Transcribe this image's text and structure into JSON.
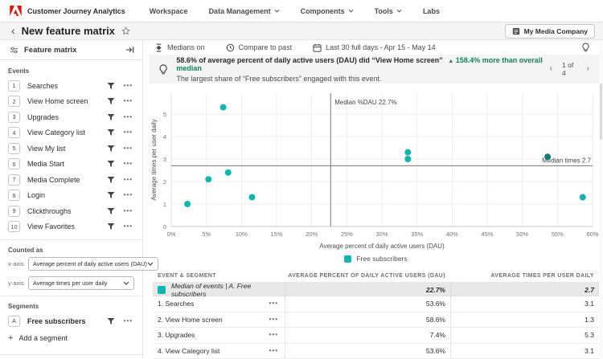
{
  "colors": {
    "brand_red": "#EB1000",
    "accent_teal": "#0FB5AE",
    "point_overlap": "#0B7E7A",
    "positive_green": "#12805C"
  },
  "app": {
    "name": "Customer Journey Analytics",
    "nav": [
      {
        "label": "Workspace",
        "chevron": false
      },
      {
        "label": "Data Management",
        "chevron": true
      },
      {
        "label": "Components",
        "chevron": true
      },
      {
        "label": "Tools",
        "chevron": true
      },
      {
        "label": "Labs",
        "chevron": false
      }
    ]
  },
  "title_bar": {
    "title": "New feature matrix",
    "org_button": "My Media Company"
  },
  "panel": {
    "header": "Feature matrix",
    "events_label": "Events",
    "events": [
      {
        "num": "1",
        "label": "Searches"
      },
      {
        "num": "2",
        "label": "View Home screen"
      },
      {
        "num": "3",
        "label": "Upgrades"
      },
      {
        "num": "4",
        "label": "View Category list"
      },
      {
        "num": "5",
        "label": "View My list"
      },
      {
        "num": "6",
        "label": "Media Start"
      },
      {
        "num": "7",
        "label": "Media Complete"
      },
      {
        "num": "8",
        "label": "Login"
      },
      {
        "num": "9",
        "label": "Clickthroughs"
      },
      {
        "num": "10",
        "label": "View Favorites"
      }
    ],
    "counted_as": {
      "label": "Counted as",
      "x_axis_label": "x-axis",
      "x_axis_value": "Average percent of daily active users (DAU)",
      "y_axis_label": "y-axis",
      "y_axis_value": "Average times per user daily"
    },
    "segments": {
      "label": "Segments",
      "items": [
        {
          "key": "A",
          "label": "Free subscribers"
        }
      ],
      "add_label": "Add a segment"
    }
  },
  "toolbar": {
    "medians": "Medians on",
    "compare": "Compare to past",
    "date_range": "Last 30 full days - Apr 15 - May 14"
  },
  "insight_banner": {
    "headline_bold": "58.6% of average percent of daily active users (DAU) did “View Home screen”",
    "delta_arrow": "▲",
    "delta": "158.4% more than overall median",
    "subline": "The largest share of “Free subscribers” engaged with this event.",
    "pagination": "1 of 4"
  },
  "chart_data": {
    "type": "scatter",
    "xlabel": "Average percent of daily active users (DAU)",
    "ylabel": "Average times per user daily",
    "xlim": [
      0,
      60
    ],
    "ylim": [
      0,
      6
    ],
    "x_ticks": [
      "0%",
      "5%",
      "10%",
      "15%",
      "20%",
      "25%",
      "30%",
      "35%",
      "40%",
      "45%",
      "50%",
      "55%",
      "60%"
    ],
    "y_ticks": [
      0,
      1,
      2,
      3,
      4,
      5
    ],
    "grid": true,
    "median_x": {
      "value": 22.7,
      "label": "Median %DAU 22.7%"
    },
    "median_y": {
      "value": 2.7,
      "label": "Median times 2.7"
    },
    "legend": [
      {
        "label": "Free subscribers"
      }
    ],
    "series": [
      {
        "name": "Free subscribers",
        "points": [
          {
            "x": 53.6,
            "y": 3.1,
            "label": "Searches"
          },
          {
            "x": 58.6,
            "y": 1.3,
            "label": "View Home screen"
          },
          {
            "x": 7.4,
            "y": 5.3,
            "label": "Upgrades"
          },
          {
            "x": 53.6,
            "y": 3.1,
            "label": "View Category list"
          },
          {
            "x": 2.3,
            "y": 1.0
          },
          {
            "x": 5.3,
            "y": 2.1
          },
          {
            "x": 8.1,
            "y": 2.4
          },
          {
            "x": 11.5,
            "y": 1.3
          },
          {
            "x": 33.7,
            "y": 3.3
          },
          {
            "x": 33.7,
            "y": 3.0
          }
        ]
      }
    ]
  },
  "table": {
    "columns": [
      "EVENT & SEGMENT",
      "AVERAGE PERCENT OF DAILY ACTIVE USERS (DAU)",
      "AVERAGE TIMES PER USER DAILY"
    ],
    "median_row": {
      "label": "Median of events | A. Free subscribers",
      "dau": "22.7%",
      "times": "2.7"
    },
    "rows": [
      {
        "label": "1. Searches",
        "dau": "53.6%",
        "times": "3.1"
      },
      {
        "label": "2. View Home screen",
        "dau": "58.6%",
        "times": "1.3"
      },
      {
        "label": "3. Upgrades",
        "dau": "7.4%",
        "times": "5.3"
      },
      {
        "label": "4. View Category list",
        "dau": "53.6%",
        "times": "3.1"
      }
    ]
  }
}
